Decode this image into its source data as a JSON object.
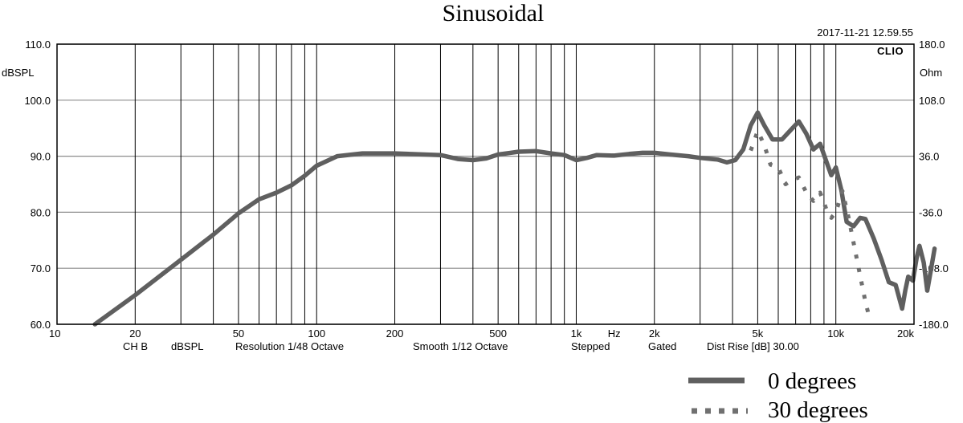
{
  "chart_data": {
    "type": "line",
    "title": "Sinusoidal",
    "timestamp": "2017-11-21 12.59.55",
    "brand": "CLIO",
    "ylabel_left": "dBSPL",
    "ylabel_right": "Ohm",
    "y_left": {
      "min": 60,
      "max": 110,
      "ticks": [
        60,
        70,
        80,
        90,
        100,
        110
      ],
      "tick_labels": [
        "60.0",
        "70.0",
        "80.0",
        "90.0",
        "100.0",
        "110.0"
      ]
    },
    "y_right": {
      "tick_labels": [
        "180.0",
        "108.0",
        "36.0",
        "-36.0",
        "-108.0",
        "-180.0"
      ]
    },
    "x": {
      "scale": "log",
      "min": 10,
      "max": 20000,
      "tick_values": [
        10,
        20,
        50,
        100,
        200,
        500,
        1000,
        2000,
        5000,
        10000,
        20000
      ],
      "tick_labels": [
        "10",
        "20",
        "50",
        "100",
        "200",
        "500",
        "1k",
        "2k",
        "5k",
        "10k",
        "20k"
      ],
      "unit_label": "Hz",
      "unit_label_position": 1400
    },
    "grid": true,
    "footer": {
      "channel": "CH B",
      "units": "dBSPL",
      "resolution": "Resolution 1/48 Octave",
      "smoothing": "Smooth 1/12 Octave",
      "mode": "Stepped",
      "gating": "Gated",
      "dist": "Dist Rise [dB] 30.00"
    },
    "legend_position": "bottom-right",
    "series": [
      {
        "name": "0 degrees",
        "style": "solid",
        "color": "#5f5f5f",
        "points": [
          [
            14,
            60
          ],
          [
            20,
            65.2
          ],
          [
            30,
            71.5
          ],
          [
            40,
            76
          ],
          [
            50,
            79.8
          ],
          [
            60,
            82.3
          ],
          [
            70,
            83.5
          ],
          [
            80,
            84.8
          ],
          [
            90,
            86.5
          ],
          [
            100,
            88.3
          ],
          [
            120,
            90
          ],
          [
            150,
            90.5
          ],
          [
            200,
            90.5
          ],
          [
            300,
            90.2
          ],
          [
            350,
            89.5
          ],
          [
            400,
            89.3
          ],
          [
            450,
            89.6
          ],
          [
            500,
            90.3
          ],
          [
            600,
            90.8
          ],
          [
            700,
            90.9
          ],
          [
            800,
            90.5
          ],
          [
            900,
            90.2
          ],
          [
            1000,
            89.3
          ],
          [
            1100,
            89.7
          ],
          [
            1200,
            90.2
          ],
          [
            1400,
            90.1
          ],
          [
            1600,
            90.4
          ],
          [
            1800,
            90.6
          ],
          [
            2000,
            90.6
          ],
          [
            2300,
            90.3
          ],
          [
            2700,
            90
          ],
          [
            3000,
            89.7
          ],
          [
            3500,
            89.4
          ],
          [
            3800,
            88.9
          ],
          [
            4100,
            89.3
          ],
          [
            4400,
            91.2
          ],
          [
            4700,
            95.5
          ],
          [
            5000,
            97.8
          ],
          [
            5300,
            95.5
          ],
          [
            5700,
            93
          ],
          [
            6200,
            93
          ],
          [
            6800,
            95
          ],
          [
            7200,
            96.2
          ],
          [
            7700,
            94
          ],
          [
            8200,
            91.2
          ],
          [
            8700,
            92.2
          ],
          [
            9200,
            89
          ],
          [
            9600,
            86.6
          ],
          [
            10000,
            88
          ],
          [
            10500,
            84
          ],
          [
            11000,
            78.3
          ],
          [
            11700,
            77.5
          ],
          [
            12400,
            79
          ],
          [
            13000,
            78.8
          ],
          [
            14000,
            75.3
          ],
          [
            15000,
            71.5
          ],
          [
            16000,
            67.5
          ],
          [
            17000,
            67
          ],
          [
            18000,
            62.8
          ],
          [
            18500,
            66
          ],
          [
            19000,
            68.5
          ],
          [
            19800,
            67.8
          ],
          [
            20500,
            72
          ],
          [
            21000,
            74
          ],
          [
            21800,
            71
          ],
          [
            22500,
            66
          ],
          [
            23200,
            69.5
          ],
          [
            24000,
            73.5
          ]
        ]
      },
      {
        "name": "30 degrees",
        "style": "dotted",
        "color": "#707070",
        "points": [
          [
            4700,
            91
          ],
          [
            5000,
            94.5
          ],
          [
            5300,
            92
          ],
          [
            5600,
            88.5
          ],
          [
            6000,
            88
          ],
          [
            6400,
            85
          ],
          [
            6800,
            85.8
          ],
          [
            7200,
            86.2
          ],
          [
            7700,
            83.5
          ],
          [
            8200,
            82
          ],
          [
            8700,
            83.5
          ],
          [
            9200,
            80.5
          ],
          [
            9600,
            79
          ],
          [
            10000,
            80
          ],
          [
            10600,
            83.8
          ],
          [
            11200,
            79
          ],
          [
            12000,
            72
          ],
          [
            13000,
            64
          ],
          [
            13500,
            61
          ]
        ]
      }
    ]
  }
}
